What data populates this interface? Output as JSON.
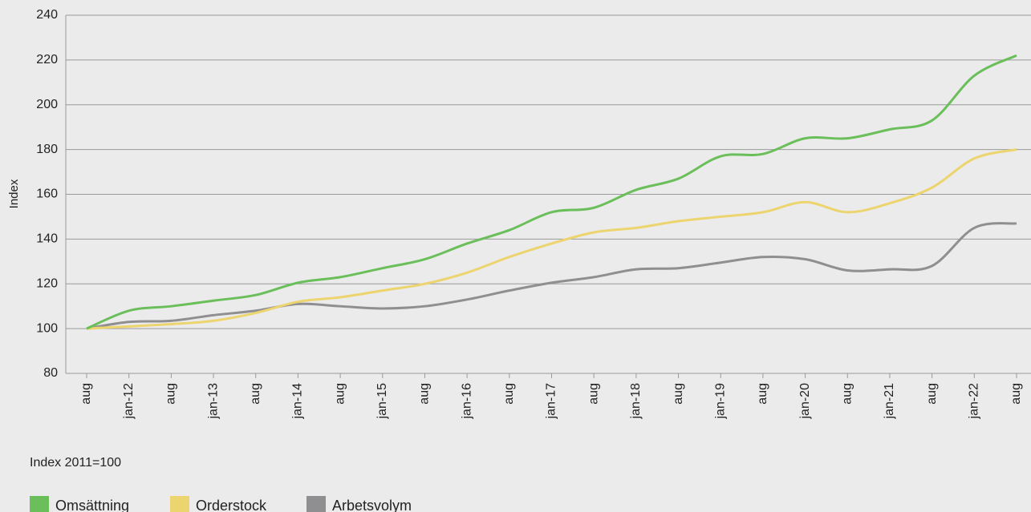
{
  "chart_data": {
    "type": "line",
    "y_label": "Index",
    "note": "Index 2011=100",
    "categories": [
      "aug",
      "jan-12",
      "aug",
      "jan-13",
      "aug",
      "jan-14",
      "aug",
      "jan-15",
      "aug",
      "jan-16",
      "aug",
      "jan-17",
      "aug",
      "jan-18",
      "aug",
      "jan-19",
      "aug",
      "jan-20",
      "aug",
      "jan-21",
      "aug",
      "jan-22",
      "aug"
    ],
    "series": [
      {
        "name": "Omsättning",
        "color": "#6abf5a",
        "values": [
          100,
          108,
          110,
          112.5,
          115,
          120.5,
          123,
          127,
          131,
          138,
          144,
          152,
          154,
          162,
          167,
          177,
          178,
          185,
          185,
          189,
          193,
          213,
          222
        ]
      },
      {
        "name": "Orderstock",
        "color": "#ecd46e",
        "values": [
          100,
          101,
          102,
          103.5,
          107,
          112,
          114,
          117,
          120,
          125,
          132,
          138,
          143,
          145,
          148,
          150,
          152,
          156.5,
          152,
          156,
          163,
          176,
          180
        ]
      },
      {
        "name": "Arbetsvolym",
        "color": "#8f8f92",
        "values": [
          100,
          103,
          103.5,
          106,
          108,
          111,
          110,
          109,
          110,
          113,
          117,
          120.5,
          123,
          126.5,
          127,
          129.5,
          132,
          131,
          126,
          126.5,
          128,
          145,
          147
        ]
      }
    ],
    "ylim": [
      80,
      240
    ],
    "yticks": [
      80,
      100,
      120,
      140,
      160,
      180,
      200,
      220,
      240
    ],
    "grid": true
  }
}
